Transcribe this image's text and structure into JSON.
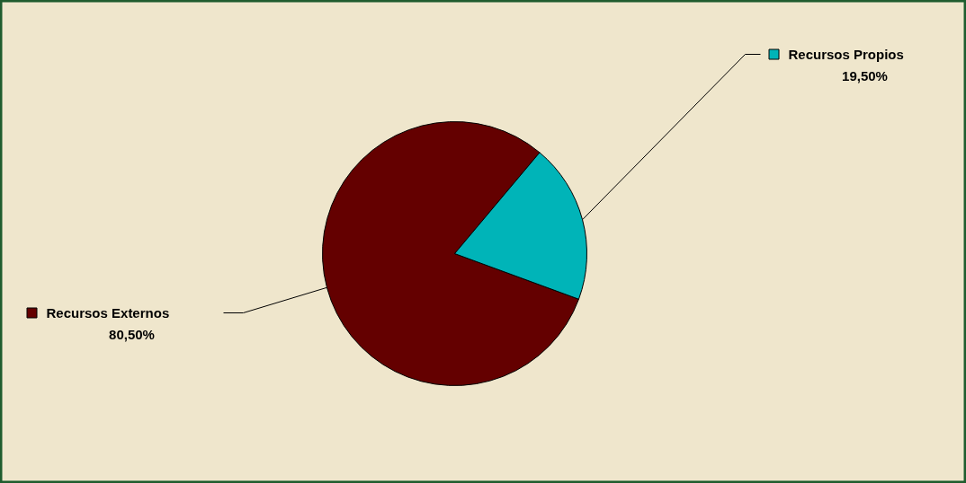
{
  "chart_data": {
    "type": "pie",
    "categories": [
      "Recursos Externos",
      "Recursos Propios"
    ],
    "values": [
      80.5,
      19.5
    ],
    "colors": [
      "#640000",
      "#00b4b8"
    ],
    "value_labels": [
      "80,50%",
      "19,50%"
    ],
    "legend": "top right"
  }
}
